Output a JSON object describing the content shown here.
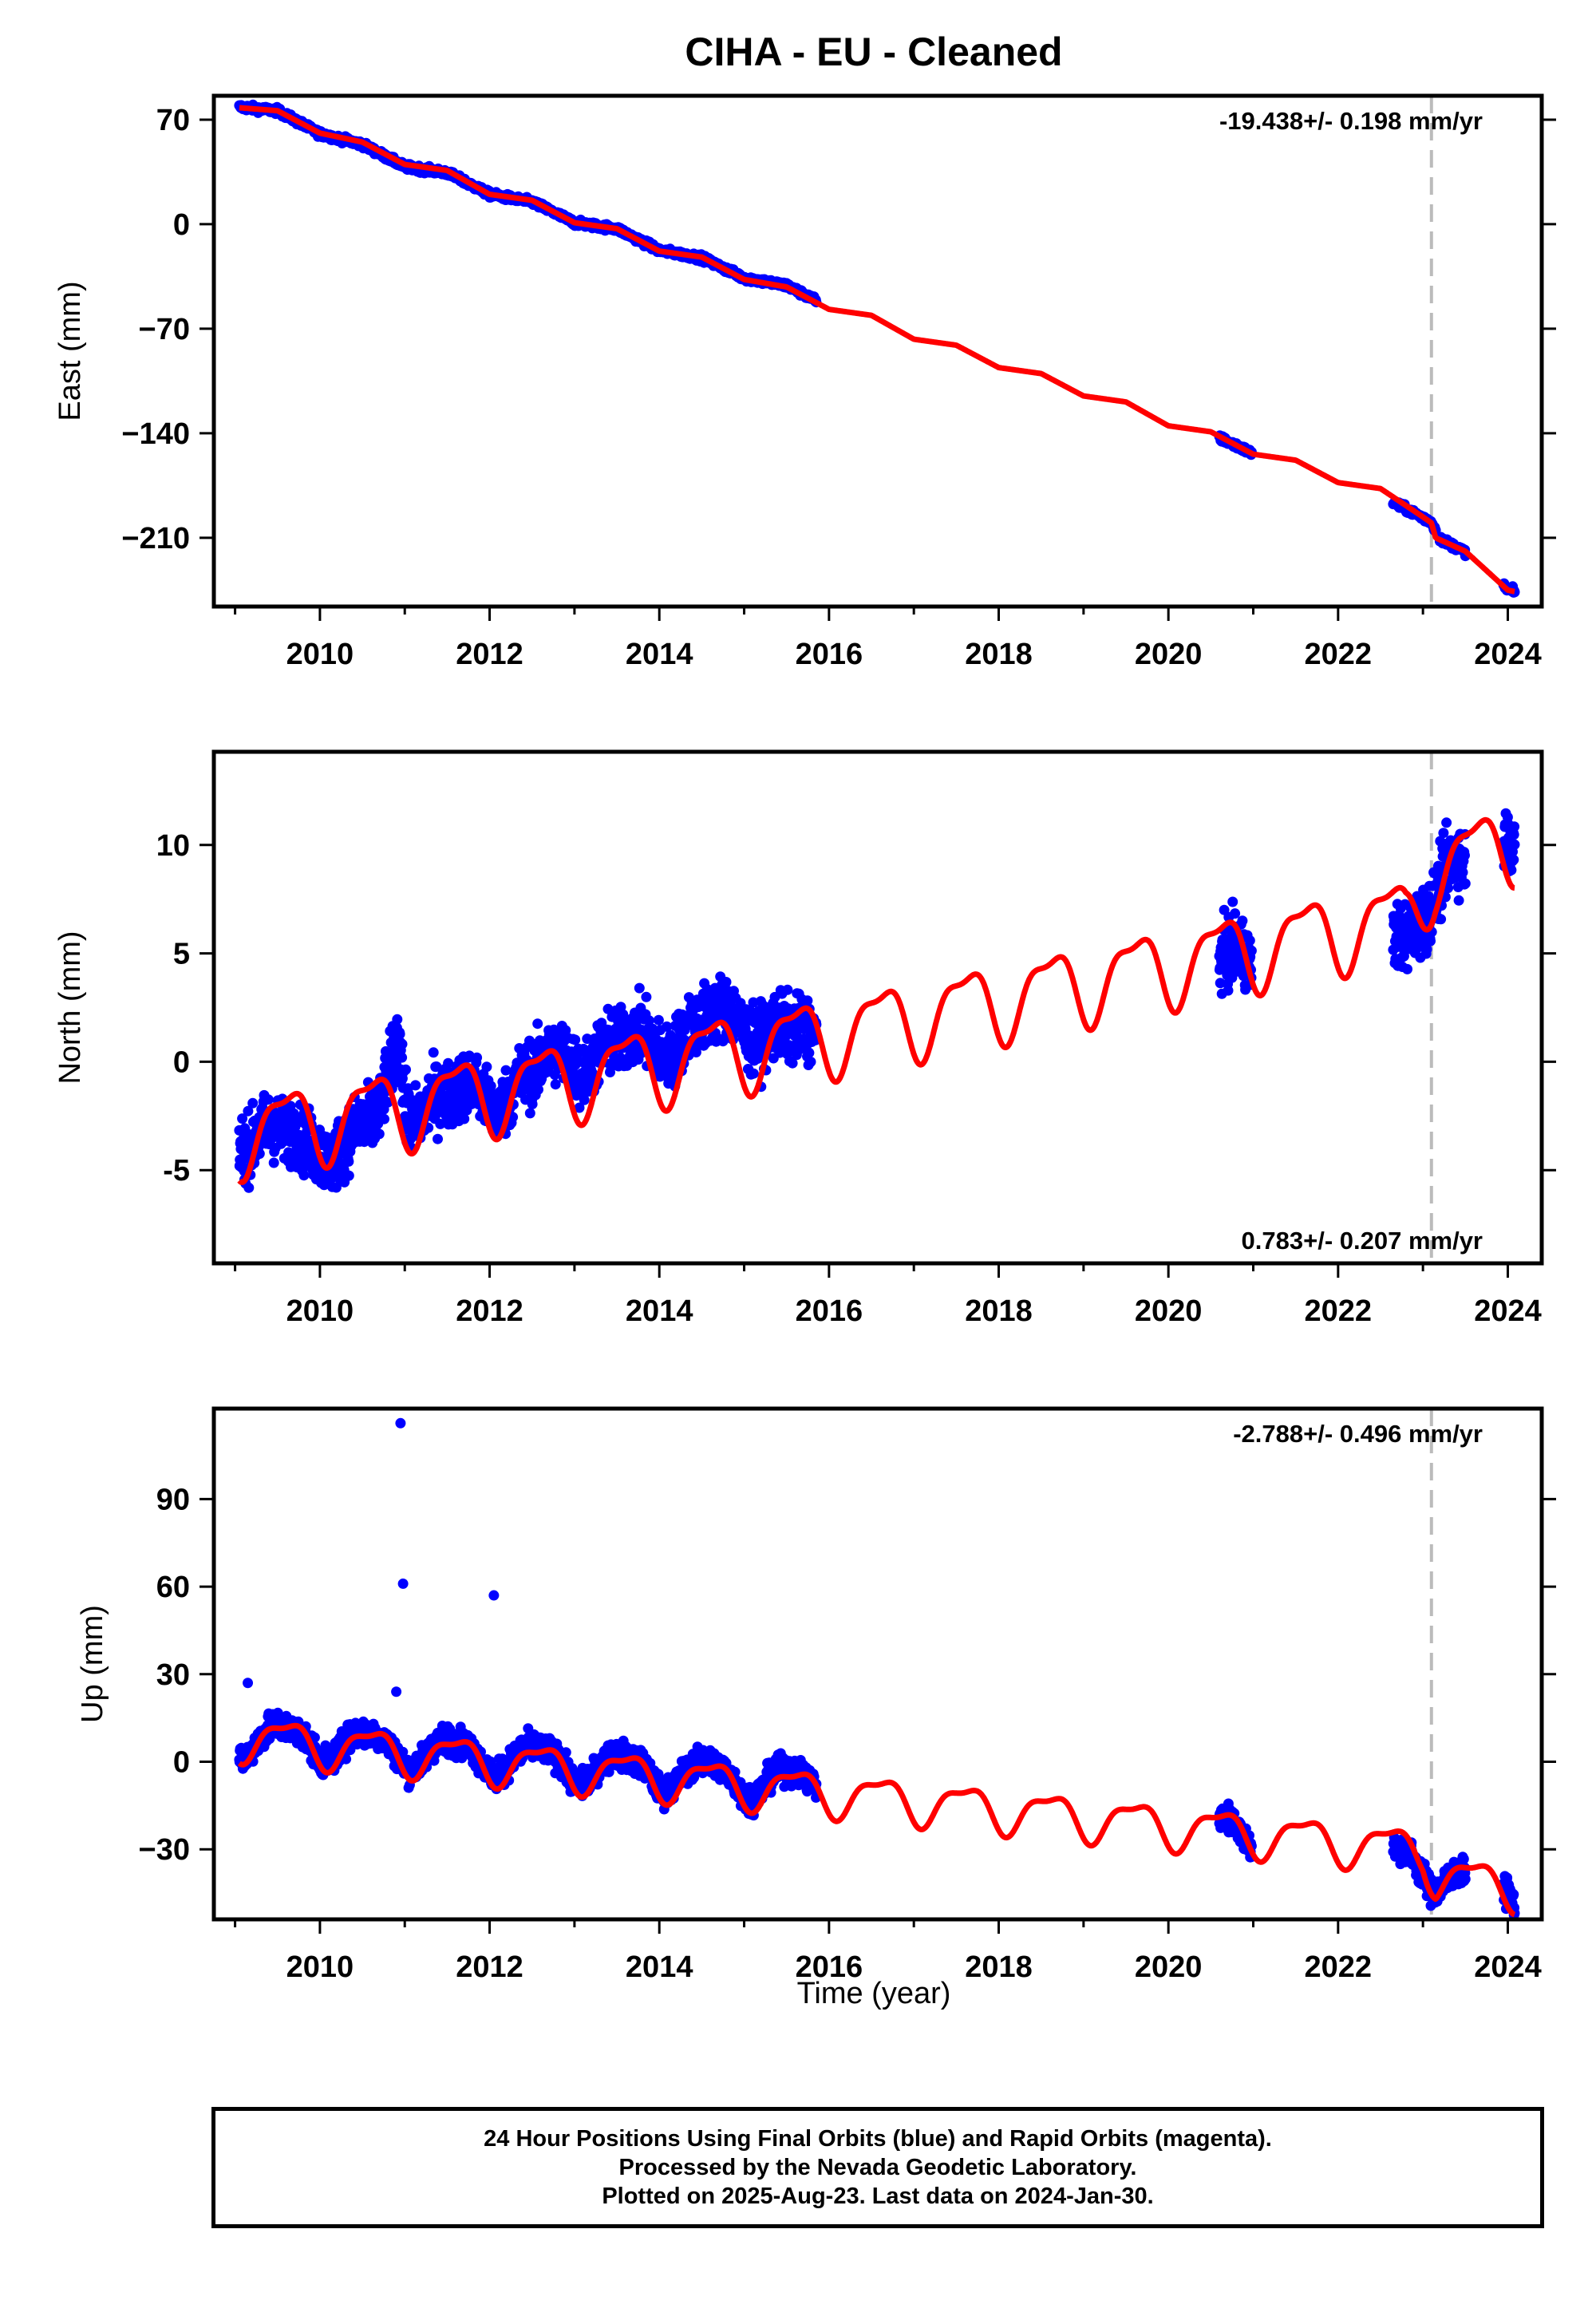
{
  "title": "CIHA  - EU - Cleaned",
  "xlabel": "Time (year)",
  "colors": {
    "final_orbits": "#0000ff",
    "model": "#ff0000",
    "marker_line": "#bbbbbb"
  },
  "footer": {
    "line1": "24 Hour Positions Using Final Orbits (blue) and Rapid Orbits (magenta).",
    "line2": "Processed by the Nevada Geodetic Laboratory.",
    "line3": "Plotted on 2025-Aug-23. Last data on 2024-Jan-30."
  },
  "chart_data": [
    {
      "type": "scatter",
      "ylabel": "East (mm)",
      "rate_label": "-19.438+/- 0.198 mm/yr",
      "xlim": [
        2008.75,
        2024.4
      ],
      "ylim": [
        -256,
        86
      ],
      "xticks": [
        2010,
        2012,
        2014,
        2016,
        2018,
        2020,
        2022,
        2024
      ],
      "yticks": [
        70,
        0,
        -70,
        -140,
        -210
      ],
      "ytick_labels": [
        "70",
        "0",
        "−70",
        "−140",
        "−210"
      ],
      "marker_line_x": 2023.1,
      "series": [
        {
          "kind": "observations",
          "data_segments": [
            [
              2009.05,
              2015.85
            ],
            [
              2020.6,
              2020.98
            ],
            [
              2022.65,
              2023.15
            ],
            [
              2023.2,
              2023.5
            ],
            [
              2023.95,
              2024.08
            ]
          ],
          "points": [
            [
              2009.05,
              79
            ],
            [
              2009.5,
              76
            ],
            [
              2010.0,
              60
            ],
            [
              2010.5,
              52
            ],
            [
              2011.0,
              37
            ],
            [
              2011.5,
              33
            ],
            [
              2012.0,
              20
            ],
            [
              2012.5,
              14
            ],
            [
              2013.0,
              1
            ],
            [
              2013.5,
              -3
            ],
            [
              2014.0,
              -17
            ],
            [
              2014.5,
              -23
            ],
            [
              2015.0,
              -35
            ],
            [
              2015.5,
              -40
            ],
            [
              2015.85,
              -50
            ],
            [
              2020.6,
              -144
            ],
            [
              2020.98,
              -153
            ],
            [
              2022.65,
              -190
            ],
            [
              2023.15,
              -200
            ],
            [
              2023.2,
              -210
            ],
            [
              2023.5,
              -220
            ],
            [
              2023.95,
              -242
            ],
            [
              2024.08,
              -246
            ]
          ]
        },
        {
          "kind": "model",
          "points": [
            [
              2009.05,
              78
            ],
            [
              2009.5,
              76
            ],
            [
              2010.0,
              61
            ],
            [
              2010.5,
              55
            ],
            [
              2011.0,
              40
            ],
            [
              2011.5,
              36
            ],
            [
              2012.0,
              20
            ],
            [
              2012.5,
              16
            ],
            [
              2013.0,
              1
            ],
            [
              2013.5,
              -3
            ],
            [
              2014.0,
              -18
            ],
            [
              2014.5,
              -22
            ],
            [
              2015.0,
              -37
            ],
            [
              2015.5,
              -42
            ],
            [
              2016.0,
              -57
            ],
            [
              2016.5,
              -61
            ],
            [
              2017.0,
              -77
            ],
            [
              2017.5,
              -81
            ],
            [
              2018.0,
              -96
            ],
            [
              2018.5,
              -100
            ],
            [
              2019.0,
              -115
            ],
            [
              2019.5,
              -119
            ],
            [
              2020.0,
              -135
            ],
            [
              2020.5,
              -139
            ],
            [
              2021.0,
              -154
            ],
            [
              2021.5,
              -158
            ],
            [
              2022.0,
              -173
            ],
            [
              2022.5,
              -177
            ],
            [
              2023.0,
              -196
            ],
            [
              2023.1,
              -200
            ],
            [
              2023.15,
              -210
            ],
            [
              2023.5,
              -219
            ],
            [
              2024.0,
              -245
            ],
            [
              2024.08,
              -246
            ]
          ]
        }
      ]
    },
    {
      "type": "scatter",
      "ylabel": "North (mm)",
      "rate_label": "0.783+/- 0.207 mm/yr",
      "xlim": [
        2008.75,
        2024.4
      ],
      "ylim": [
        -9.3,
        14.3
      ],
      "xticks": [
        2010,
        2012,
        2014,
        2016,
        2018,
        2020,
        2022,
        2024
      ],
      "yticks": [
        10,
        5,
        0,
        -5
      ],
      "ytick_labels": [
        "10",
        "5",
        "0",
        "-5"
      ],
      "marker_line_x": 2023.1,
      "series": [
        {
          "kind": "observations",
          "data_segments": [
            [
              2009.05,
              2015.85
            ],
            [
              2020.6,
              2020.98
            ],
            [
              2022.65,
              2023.5
            ],
            [
              2023.95,
              2024.08
            ]
          ],
          "points": [
            [
              2009.1,
              -2.5
            ],
            [
              2009.5,
              -4.2
            ],
            [
              2009.8,
              -5.5
            ],
            [
              2010.0,
              -4.0
            ],
            [
              2010.3,
              -5.0
            ],
            [
              2010.7,
              -4.0
            ],
            [
              2010.95,
              5.6
            ],
            [
              2011.0,
              -1.0
            ],
            [
              2011.5,
              -2.5
            ],
            [
              2012.0,
              -1.0
            ],
            [
              2012.5,
              -1.0
            ],
            [
              2013.0,
              2.0
            ],
            [
              2013.5,
              1.0
            ],
            [
              2014.0,
              2.5
            ],
            [
              2014.5,
              2.5
            ],
            [
              2015.0,
              4.0
            ],
            [
              2015.5,
              1.0
            ],
            [
              2015.85,
              0.5
            ],
            [
              2020.7,
              3.5
            ],
            [
              2020.9,
              5.0
            ],
            [
              2022.8,
              3.5
            ],
            [
              2023.0,
              7.0
            ],
            [
              2023.3,
              9.5
            ],
            [
              2023.5,
              8.0
            ],
            [
              2024.0,
              12.0
            ],
            [
              2024.08,
              12.5
            ]
          ]
        },
        {
          "kind": "model",
          "amplitude": 1.7,
          "trend": [
            [
              2009.05,
              -3.3
            ],
            [
              2015.9,
              1.2
            ],
            [
              2022.8,
              6.7
            ],
            [
              2023.15,
              8.9
            ],
            [
              2024.08,
              10.3
            ]
          ]
        }
      ]
    },
    {
      "type": "scatter",
      "ylabel": "Up (mm)",
      "rate_label": "-2.788+/- 0.496 mm/yr",
      "xlim": [
        2008.75,
        2024.4
      ],
      "ylim": [
        -54,
        121
      ],
      "xticks": [
        2010,
        2012,
        2014,
        2016,
        2018,
        2020,
        2022,
        2024
      ],
      "yticks": [
        90,
        60,
        30,
        0,
        -30
      ],
      "ytick_labels": [
        "90",
        "60",
        "30",
        "0",
        "−30"
      ],
      "marker_line_x": 2023.1,
      "series": [
        {
          "kind": "observations",
          "data_segments": [
            [
              2009.05,
              2015.85
            ],
            [
              2020.6,
              2020.98
            ],
            [
              2022.65,
              2023.5
            ],
            [
              2023.95,
              2024.08
            ]
          ],
          "outliers": [
            [
              2010.95,
              116
            ],
            [
              2010.98,
              61
            ],
            [
              2012.05,
              57
            ],
            [
              2010.9,
              24
            ],
            [
              2009.15,
              27
            ]
          ],
          "points": [
            [
              2009.1,
              3
            ],
            [
              2009.5,
              14
            ],
            [
              2010.0,
              2
            ],
            [
              2010.5,
              12
            ],
            [
              2011.0,
              0
            ],
            [
              2011.5,
              10
            ],
            [
              2012.0,
              -2
            ],
            [
              2012.5,
              8
            ],
            [
              2013.0,
              -5
            ],
            [
              2013.5,
              5
            ],
            [
              2014.0,
              -7
            ],
            [
              2014.5,
              3
            ],
            [
              2015.0,
              -9
            ],
            [
              2015.5,
              1
            ],
            [
              2015.85,
              -10
            ],
            [
              2020.7,
              -20
            ],
            [
              2020.9,
              -28
            ],
            [
              2022.8,
              -35
            ],
            [
              2023.1,
              -43
            ],
            [
              2023.4,
              -40
            ],
            [
              2024.0,
              -40
            ],
            [
              2024.08,
              -45
            ]
          ]
        },
        {
          "kind": "model",
          "amplitude": 7,
          "trend": [
            [
              2009.05,
              8.5
            ],
            [
              2015.9,
              -10.5
            ],
            [
              2023.0,
              -30.3
            ],
            [
              2023.15,
              -39.0
            ],
            [
              2024.08,
              -43.0
            ]
          ]
        }
      ]
    }
  ]
}
